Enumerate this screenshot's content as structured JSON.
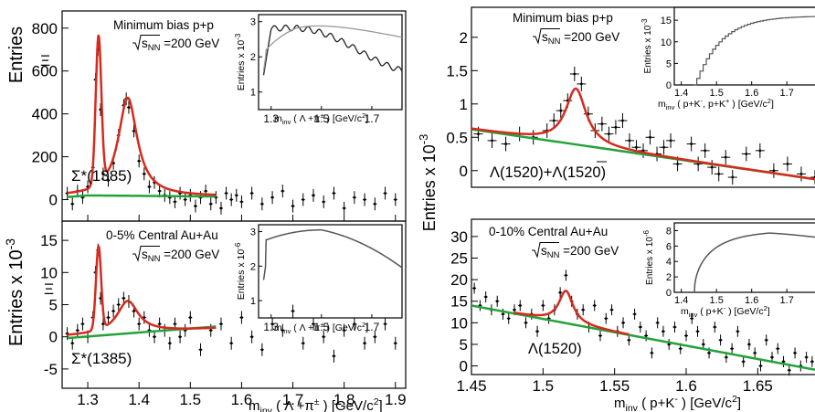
{
  "left": {
    "xlabel_main": "m",
    "xlabel_sub": "inv",
    "xlabel_rest": "( Λ +π",
    "xlabel_sup": "±",
    "xlabel_units": ") [GeV/c",
    "xlabel_sq": "2",
    "xlabel_close": "]",
    "xticks": [
      "1.3",
      "1.4",
      "1.5",
      "1.6",
      "1.7",
      "1.8",
      "1.9"
    ],
    "panels": [
      {
        "ylabel": "Entries",
        "ylabel_scale": "",
        "yticks": [
          "0",
          "200",
          "400",
          "600",
          "800"
        ],
        "label1": "Minimum bias p+p",
        "label2_pre": "s",
        "label2_sub": "NN",
        "label2_post": "=200 GeV",
        "peak1": "Ξ",
        "peak2": "Σ*(1385)",
        "inset_ylabel": "Entries x 10",
        "inset_ylabel_exp": "-3",
        "inset_yticks": [
          "1",
          "2",
          "3"
        ],
        "inset_xticks": [
          "1.3",
          "1.5",
          "1.7"
        ],
        "inset_xlabel": "m",
        "inset_xlabel_sub": "inv",
        "inset_xlabel_rest": "( Λ +π",
        "inset_xlabel_sup": "±",
        "inset_xlabel_units": ") [GeV/c",
        "inset_xlabel_sq": "2",
        "inset_xlabel_close": "]"
      },
      {
        "ylabel": "Entries",
        "ylabel_scale": "x 10",
        "ylabel_exp": "-3",
        "yticks": [
          "-5",
          "0",
          "5",
          "10",
          "15"
        ],
        "label1": "0-5% Central Au+Au",
        "label2_pre": "s",
        "label2_sub": "NN",
        "label2_post": "=200 GeV",
        "peak1": "Ξ",
        "peak2": "Σ*(1385)",
        "inset_ylabel": "Entries x 10",
        "inset_ylabel_exp": "-6",
        "inset_yticks": [
          "1",
          "2",
          "3"
        ],
        "inset_xticks": [
          "1.3",
          "1.5",
          "1.7"
        ],
        "inset_xlabel": "m",
        "inset_xlabel_sub": "inv",
        "inset_xlabel_rest": "( Λ +π",
        "inset_xlabel_sup": "±",
        "inset_xlabel_units": ") [GeV/c",
        "inset_xlabel_sq": "2",
        "inset_xlabel_close": "]"
      }
    ]
  },
  "right": {
    "xlabel_main": "m",
    "xlabel_sub": "inv",
    "xlabel_rest": "( p+K",
    "xlabel_sup": "-",
    "xlabel_units": ") [GeV/c",
    "xlabel_sq": "2",
    "xlabel_close": "]",
    "xticks": [
      "1.45",
      "1.5",
      "1.55",
      "1.6",
      "1.65"
    ],
    "ylabel": "Entries  x 10",
    "ylabel_exp": "-3",
    "panels": [
      {
        "yticks": [
          "0",
          "0.5",
          "1",
          "1.5",
          "2"
        ],
        "label1": "Minimum bias p+p",
        "label2_pre": "s",
        "label2_sub": "NN",
        "label2_post": "=200 GeV",
        "peak_label": "Λ(1520)+Λ(1520)",
        "inset_ylabel": "Entries x 10",
        "inset_ylabel_exp": "-3",
        "inset_yticks": [
          "0",
          "5",
          "10",
          "15"
        ],
        "inset_xticks": [
          "1.4",
          "1.5",
          "1.6",
          "1.7"
        ],
        "inset_xlabel": "m",
        "inset_xlabel_sub": "inv",
        "inset_xlabel_rest": "( p+K",
        "inset_xlabel_sup": "-",
        "inset_xlabel_mid": ", p+K",
        "inset_xlabel_sup2": "+",
        "inset_xlabel_units": ") [GeV/c",
        "inset_xlabel_sq": "2",
        "inset_xlabel_close": "]"
      },
      {
        "yticks": [
          "0",
          "5",
          "10",
          "15",
          "20",
          "25",
          "30"
        ],
        "label1": "0-10% Central Au+Au",
        "label2_pre": "s",
        "label2_sub": "NN",
        "label2_post": "=200 GeV",
        "peak_label": "Λ(1520)",
        "inset_ylabel": "Entries x 10",
        "inset_ylabel_exp": "-6",
        "inset_yticks": [
          "0",
          "2",
          "4",
          "6",
          "8"
        ],
        "inset_xticks": [
          "1.4",
          "1.5",
          "1.6",
          "1.7"
        ],
        "inset_xlabel": "m",
        "inset_xlabel_sub": "inv",
        "inset_xlabel_rest": "( p+K",
        "inset_xlabel_sup": "-",
        "inset_xlabel_mid": "",
        "inset_xlabel_sup2": "",
        "inset_xlabel_units": ") [GeV/c",
        "inset_xlabel_sq": "2",
        "inset_xlabel_close": "]"
      }
    ]
  },
  "colors": {
    "fit": "#d62a1e",
    "background": "#22a33a",
    "points": "#000000",
    "inset_line": "#555555",
    "inset_fit": "#999999"
  },
  "chart_data": [
    {
      "type": "scatter",
      "xlabel": "m_inv ( Λ +π± ) [GeV/c2]",
      "ylabel": "Entries",
      "xlim": [
        1.25,
        1.92
      ],
      "ylim": [
        -100,
        880
      ],
      "annotations": [
        "Minimum bias p+p",
        "√sNN =200 GeV",
        "Ξ",
        "Σ*(1385)"
      ],
      "series": [
        {
          "values_x": [
            1.26,
            1.27,
            1.28,
            1.29,
            1.3,
            1.31,
            1.315,
            1.32,
            1.325,
            1.33,
            1.34,
            1.35,
            1.36,
            1.37,
            1.375,
            1.38,
            1.39,
            1.4,
            1.41,
            1.42,
            1.43,
            1.44,
            1.45,
            1.46,
            1.47,
            1.48,
            1.49,
            1.5,
            1.51,
            1.52,
            1.53,
            1.54,
            1.55,
            1.56,
            1.57,
            1.58,
            1.59,
            1.6,
            1.62,
            1.64,
            1.66,
            1.68,
            1.7,
            1.72,
            1.74,
            1.76,
            1.78,
            1.8,
            1.82,
            1.84,
            1.86,
            1.88,
            1.9
          ],
          "values_y": [
            30,
            -20,
            40,
            10,
            60,
            150,
            560,
            700,
            420,
            120,
            90,
            170,
            300,
            440,
            470,
            430,
            320,
            180,
            120,
            60,
            80,
            40,
            20,
            10,
            -10,
            30,
            0,
            20,
            -30,
            10,
            40,
            -20,
            10,
            -40,
            30,
            0,
            20,
            -10,
            30,
            -20,
            10,
            40,
            -30,
            0,
            20,
            -10,
            30,
            -40,
            10,
            0,
            -20,
            30,
            0
          ]
        }
      ]
    },
    {
      "type": "scatter",
      "xlabel": "m_inv ( Λ +π± ) [GeV/c2]",
      "ylabel": "Entries x 10-3",
      "xlim": [
        1.25,
        1.92
      ],
      "ylim": [
        -8,
        18
      ],
      "annotations": [
        "0-5% Central Au+Au",
        "√sNN =200 GeV",
        "Ξ",
        "Σ*(1385)"
      ],
      "series": [
        {
          "values_x": [
            1.26,
            1.27,
            1.28,
            1.29,
            1.3,
            1.31,
            1.315,
            1.32,
            1.325,
            1.33,
            1.34,
            1.35,
            1.36,
            1.37,
            1.38,
            1.39,
            1.4,
            1.41,
            1.42,
            1.43,
            1.44,
            1.45,
            1.46,
            1.47,
            1.48,
            1.49,
            1.5,
            1.52,
            1.54,
            1.56,
            1.58,
            1.6,
            1.62,
            1.64,
            1.66,
            1.68,
            1.7,
            1.72,
            1.74,
            1.76,
            1.78,
            1.8,
            1.82,
            1.84,
            1.86,
            1.88,
            1.9
          ],
          "values_y": [
            0.5,
            -1,
            1,
            2,
            0,
            3,
            10,
            13.5,
            6,
            2,
            3,
            4,
            5,
            6,
            5.5,
            4,
            2,
            3,
            1,
            0,
            2,
            1,
            -1,
            2,
            0,
            1,
            3,
            -2,
            1,
            2,
            -1,
            3,
            0,
            -2,
            2,
            1,
            4,
            -1,
            2,
            0,
            -3,
            1,
            2,
            -1,
            0,
            2,
            -1
          ]
        }
      ]
    },
    {
      "type": "scatter",
      "xlabel": "m_inv ( p+K- ) [GeV/c2]",
      "ylabel": "Entries x 10-3",
      "xlim": [
        1.44,
        1.69
      ],
      "ylim": [
        -0.25,
        2.45
      ],
      "annotations": [
        "Minimum bias p+p",
        "√sNN =200 GeV",
        "Λ(1520)+Λ(1520)"
      ],
      "series": [
        {
          "values_x": [
            1.445,
            1.455,
            1.465,
            1.475,
            1.485,
            1.495,
            1.5,
            1.505,
            1.51,
            1.515,
            1.52,
            1.525,
            1.53,
            1.535,
            1.54,
            1.545,
            1.55,
            1.555,
            1.56,
            1.565,
            1.57,
            1.575,
            1.58,
            1.585,
            1.59,
            1.6,
            1.605,
            1.61,
            1.615,
            1.62,
            1.625,
            1.63,
            1.64,
            1.65,
            1.66,
            1.67,
            1.68,
            1.69
          ],
          "values_y": [
            0.55,
            0.45,
            0.4,
            0.55,
            0.5,
            0.6,
            0.75,
            0.9,
            1.05,
            1.45,
            1.3,
            0.85,
            0.6,
            0.7,
            0.55,
            0.65,
            0.75,
            0.45,
            0.35,
            0.3,
            0.5,
            0.25,
            0.35,
            0.45,
            0.1,
            0.4,
            0.1,
            0.3,
            0.05,
            -0.05,
            0.2,
            -0.1,
            0.25,
            0.3,
            0.0,
            0.1,
            -0.05,
            -0.1
          ]
        }
      ]
    },
    {
      "type": "scatter",
      "xlabel": "m_inv ( p+K- ) [GeV/c2]",
      "ylabel": "Entries x 10-3",
      "xlim": [
        1.45,
        1.69
      ],
      "ylim": [
        -2,
        34
      ],
      "annotations": [
        "0-10% Central Au+Au",
        "√sNN =200 GeV",
        "Λ(1520)"
      ],
      "series": [
        {
          "values_x": [
            1.452,
            1.456,
            1.46,
            1.464,
            1.468,
            1.472,
            1.476,
            1.48,
            1.484,
            1.488,
            1.492,
            1.496,
            1.5,
            1.504,
            1.508,
            1.512,
            1.516,
            1.52,
            1.524,
            1.528,
            1.532,
            1.536,
            1.54,
            1.544,
            1.548,
            1.552,
            1.556,
            1.56,
            1.564,
            1.568,
            1.572,
            1.576,
            1.58,
            1.584,
            1.588,
            1.592,
            1.596,
            1.6,
            1.604,
            1.608,
            1.612,
            1.616,
            1.62,
            1.624,
            1.628,
            1.632,
            1.636,
            1.64,
            1.644,
            1.648,
            1.652,
            1.656,
            1.66,
            1.664,
            1.668,
            1.672,
            1.676,
            1.68,
            1.684,
            1.688
          ],
          "values_y": [
            18,
            14,
            16,
            13,
            15,
            12,
            11,
            13,
            14,
            10,
            12,
            8,
            14,
            11,
            13,
            17,
            21,
            15,
            12,
            13,
            9,
            14,
            7,
            11,
            13,
            8,
            10,
            6,
            12,
            9,
            7,
            3,
            10,
            8,
            5,
            9,
            4,
            7,
            11,
            8,
            5,
            3,
            9,
            6,
            2,
            4,
            8,
            1,
            5,
            3,
            0,
            6,
            2,
            4,
            1,
            -1,
            3,
            0,
            2,
            1
          ]
        }
      ]
    }
  ]
}
